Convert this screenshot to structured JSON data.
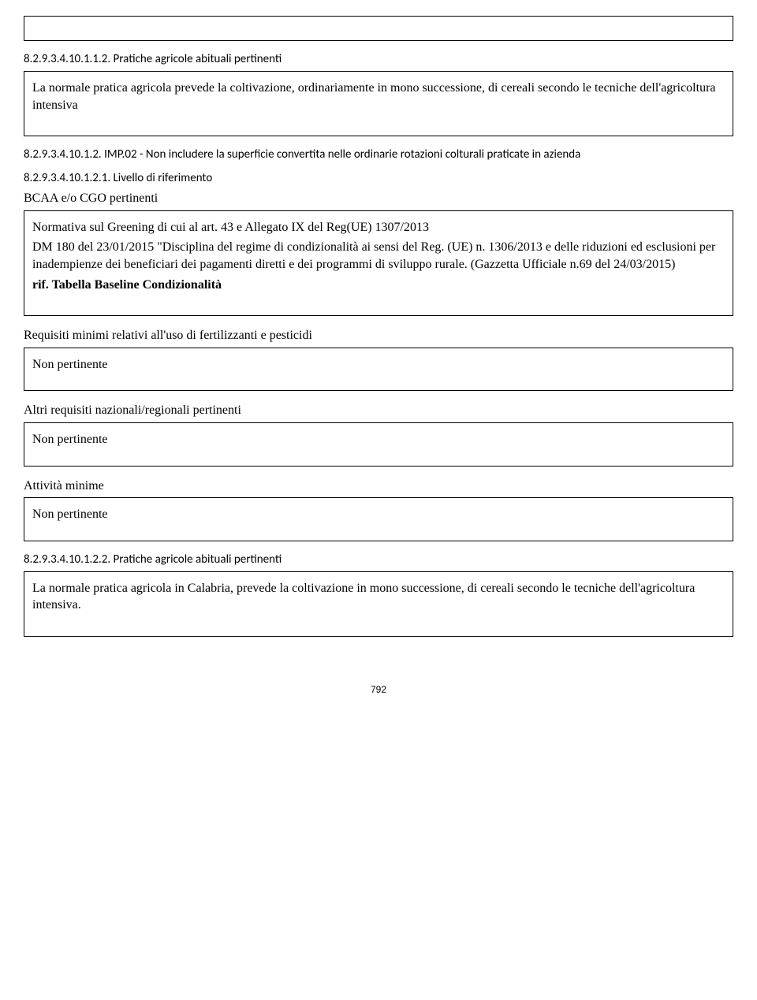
{
  "s1": {
    "heading": "8.2.9.3.4.10.1.1.2. Pratiche agricole abituali pertinenti",
    "body": "La normale pratica agricola prevede la coltivazione, ordinariamente in mono successione, di cereali secondo le tecniche dell'agricoltura intensiva"
  },
  "s2": {
    "heading": "8.2.9.3.4.10.1.2. IMP.02 - Non includere la superficie convertita nelle ordinarie rotazioni colturali praticate in azienda",
    "sub": "8.2.9.3.4.10.1.2.1. Livello di riferimento",
    "line1": "BCAA e/o CGO pertinenti",
    "body1": "Normativa sul Greening di cui al art. 43 e Allegato IX del Reg(UE) 1307/2013",
    "body2": "DM 180 del 23/01/2015 \"Disciplina del regime di condizionalità ai sensi del Reg. (UE) n. 1306/2013 e delle riduzioni ed esclusioni per inadempienze dei beneficiari dei pagamenti diretti e dei programmi di sviluppo rurale. (Gazzetta Ufficiale n.69 del 24/03/2015)",
    "body3": "rif. Tabella Baseline Condizionalità"
  },
  "s3": {
    "line1": "Requisiti minimi relativi all'uso di fertilizzanti e pesticidi",
    "body": "Non pertinente"
  },
  "s4": {
    "line1": "Altri requisiti nazionali/regionali pertinenti",
    "body": "Non pertinente"
  },
  "s5": {
    "line1": "Attività minime",
    "body": "Non pertinente"
  },
  "s6": {
    "heading": "8.2.9.3.4.10.1.2.2. Pratiche agricole abituali pertinenti",
    "body": "La normale pratica agricola in Calabria, prevede la coltivazione in mono successione, di cereali secondo le tecniche dell'agricoltura intensiva."
  },
  "page": "792"
}
